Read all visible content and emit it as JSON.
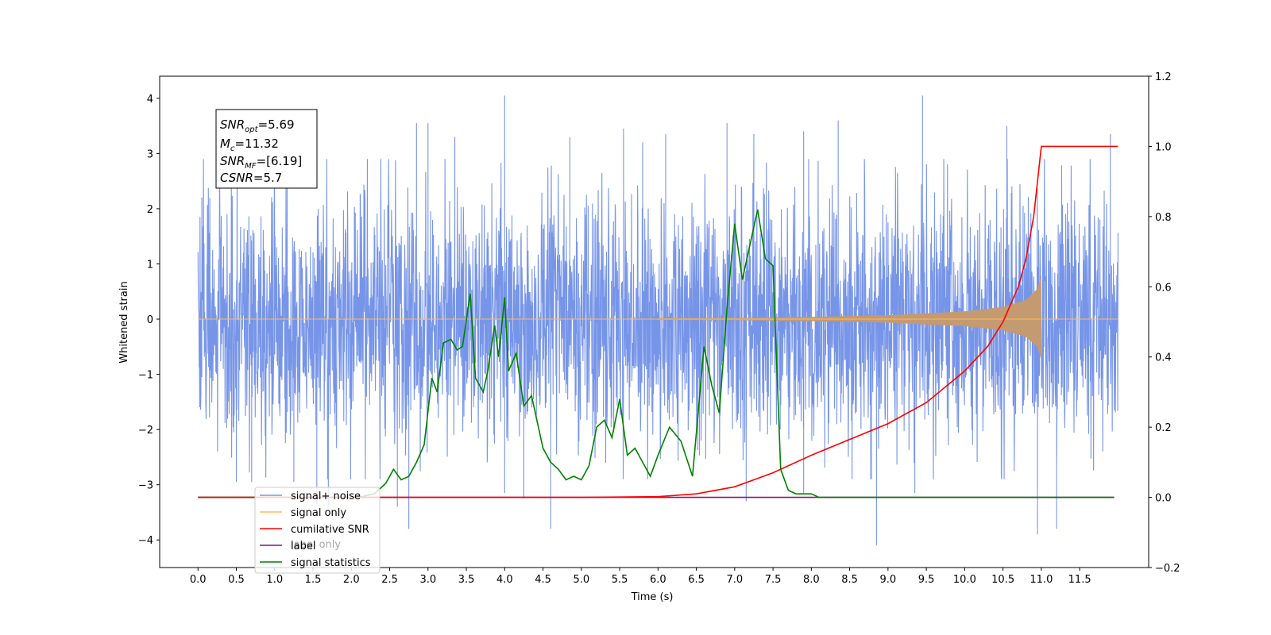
{
  "chart_data": {
    "type": "line",
    "title": "",
    "xlabel": "Time (s)",
    "ylabel": "Whitened strain",
    "y2label": "",
    "xlim": [
      -0.5,
      12.4
    ],
    "ylim": [
      -4.5,
      4.4
    ],
    "y2lim": [
      -0.2,
      1.2
    ],
    "x_ticks": [
      0.0,
      0.5,
      1.0,
      1.5,
      2.0,
      2.5,
      3.0,
      3.5,
      4.0,
      4.5,
      5.0,
      5.5,
      6.0,
      6.5,
      7.0,
      7.5,
      8.0,
      8.5,
      9.0,
      9.5,
      10.0,
      10.5,
      11.0,
      11.5
    ],
    "x_tick_labels": [
      "0.0",
      "0.5",
      "1.0",
      "1.5",
      "2.0",
      "2.5",
      "3.0",
      "3.5",
      "4.0",
      "4.5",
      "5.0",
      "5.5",
      "6.0",
      "6.5",
      "7.0",
      "7.5",
      "8.0",
      "8.5",
      "9.0",
      "9.5",
      "10.0",
      "10.5",
      "11.0",
      "11.5"
    ],
    "y_ticks": [
      -4,
      -3,
      -2,
      -1,
      0,
      1,
      2,
      3,
      4
    ],
    "y_tick_labels": [
      "−4",
      "−3",
      "−2",
      "−1",
      "0",
      "1",
      "2",
      "3",
      "4"
    ],
    "y2_ticks": [
      -0.2,
      0.0,
      0.2,
      0.4,
      0.6,
      0.8,
      1.0,
      1.2
    ],
    "y2_tick_labels": [
      "−0.2",
      "0.0",
      "0.2",
      "0.4",
      "0.6",
      "0.8",
      "1.0",
      "1.2"
    ],
    "grid": false,
    "legend_position": "lower-left",
    "annotation": {
      "lines": [
        {
          "main": "SNR",
          "sub": "opt",
          "value": "=5.69"
        },
        {
          "main": "M",
          "sub": "c",
          "value": "=11.32"
        },
        {
          "main": "SNR",
          "sub": "MF",
          "value": "=[6.19]"
        },
        {
          "main": "CSNR",
          "sub": "",
          "value": "=5.7"
        }
      ]
    },
    "series": [
      {
        "name": "signal+ noise",
        "axis": "left",
        "color": "#7795e8",
        "kind": "noise_band",
        "x_range": [
          0.0,
          12.0
        ],
        "typical_range": [
          -1.5,
          1.5
        ],
        "spikes": [
          {
            "x": 0.05,
            "y": 2.2
          },
          {
            "x": 0.05,
            "y": -1.05
          },
          {
            "x": 0.5,
            "y": -2.95
          },
          {
            "x": 0.7,
            "y": -2.95
          },
          {
            "x": 1.25,
            "y": -2.95
          },
          {
            "x": 1.55,
            "y": -3.35
          },
          {
            "x": 1.7,
            "y": -3.4
          },
          {
            "x": 2.6,
            "y": -3.4
          },
          {
            "x": 2.75,
            "y": -3.8
          },
          {
            "x": 2.85,
            "y": 3.55
          },
          {
            "x": 3.0,
            "y": 3.55
          },
          {
            "x": 3.35,
            "y": 3.3
          },
          {
            "x": 4.0,
            "y": 4.05
          },
          {
            "x": 4.0,
            "y": -3.15
          },
          {
            "x": 4.25,
            "y": -3.25
          },
          {
            "x": 4.6,
            "y": -3.8
          },
          {
            "x": 4.85,
            "y": 3.3
          },
          {
            "x": 5.55,
            "y": 3.45
          },
          {
            "x": 5.8,
            "y": 3.2
          },
          {
            "x": 6.1,
            "y": 3.35
          },
          {
            "x": 6.9,
            "y": 3.55
          },
          {
            "x": 7.15,
            "y": -3.3
          },
          {
            "x": 7.25,
            "y": 3.35
          },
          {
            "x": 7.9,
            "y": 3.4
          },
          {
            "x": 7.9,
            "y": -3.15
          },
          {
            "x": 8.35,
            "y": 3.6
          },
          {
            "x": 8.85,
            "y": -4.1
          },
          {
            "x": 9.35,
            "y": -3.15
          },
          {
            "x": 9.45,
            "y": 4.05
          },
          {
            "x": 10.55,
            "y": 3.5
          },
          {
            "x": 10.95,
            "y": -3.9
          },
          {
            "x": 11.2,
            "y": -3.8
          },
          {
            "x": 11.9,
            "y": 3.35
          }
        ]
      },
      {
        "name": "signal only",
        "axis": "left",
        "color": "#ffbb55",
        "fill_color": "#c49a70",
        "kind": "chirp",
        "x_range": [
          0.0,
          12.0
        ],
        "merger_time": 11.0,
        "envelope": [
          [
            0.0,
            0.0
          ],
          [
            7.0,
            0.02
          ],
          [
            8.0,
            0.04
          ],
          [
            9.0,
            0.07
          ],
          [
            10.0,
            0.14
          ],
          [
            10.5,
            0.22
          ],
          [
            10.8,
            0.35
          ],
          [
            10.95,
            0.55
          ],
          [
            11.0,
            0.8
          ]
        ]
      },
      {
        "name": "cumilative SNR",
        "axis": "right",
        "color": "#ff0000",
        "x": [
          0.0,
          5.0,
          6.0,
          6.5,
          7.0,
          7.5,
          8.0,
          8.5,
          9.0,
          9.5,
          10.0,
          10.3,
          10.5,
          10.7,
          10.8,
          10.9,
          10.95,
          11.0,
          11.5,
          12.0
        ],
        "y": [
          0.0,
          0.0,
          0.002,
          0.01,
          0.03,
          0.07,
          0.12,
          0.165,
          0.21,
          0.27,
          0.36,
          0.43,
          0.5,
          0.6,
          0.68,
          0.8,
          0.9,
          1.0,
          1.0,
          1.0
        ]
      },
      {
        "name": "label",
        "axis": "right",
        "color": "#7a1a78",
        "x": [
          0.0,
          11.95
        ],
        "y": [
          0.0,
          0.0
        ]
      },
      {
        "name": "signal statistics",
        "axis": "right",
        "color": "#008000",
        "x": [
          0.0,
          2.1,
          2.3,
          2.45,
          2.55,
          2.65,
          2.75,
          2.85,
          2.95,
          3.05,
          3.12,
          3.2,
          3.3,
          3.38,
          3.45,
          3.55,
          3.62,
          3.72,
          3.78,
          3.87,
          3.92,
          4.0,
          4.05,
          4.15,
          4.25,
          4.35,
          4.5,
          4.6,
          4.7,
          4.8,
          4.9,
          5.0,
          5.1,
          5.2,
          5.3,
          5.4,
          5.5,
          5.6,
          5.7,
          5.8,
          5.9,
          6.0,
          6.15,
          6.3,
          6.45,
          6.6,
          6.7,
          6.8,
          6.9,
          7.0,
          7.1,
          7.2,
          7.3,
          7.4,
          7.5,
          7.6,
          7.7,
          7.8,
          7.9,
          8.0,
          8.1,
          8.2,
          8.5,
          11.0,
          11.95
        ],
        "y": [
          0.0,
          0.0,
          0.01,
          0.04,
          0.08,
          0.05,
          0.06,
          0.1,
          0.15,
          0.34,
          0.3,
          0.44,
          0.45,
          0.42,
          0.43,
          0.58,
          0.34,
          0.3,
          0.36,
          0.49,
          0.4,
          0.57,
          0.36,
          0.41,
          0.26,
          0.29,
          0.14,
          0.1,
          0.08,
          0.05,
          0.06,
          0.05,
          0.09,
          0.2,
          0.22,
          0.17,
          0.28,
          0.12,
          0.14,
          0.1,
          0.06,
          0.12,
          0.2,
          0.16,
          0.06,
          0.43,
          0.32,
          0.24,
          0.54,
          0.78,
          0.62,
          0.72,
          0.82,
          0.68,
          0.66,
          0.08,
          0.02,
          0.01,
          0.01,
          0.01,
          0.0,
          0.0,
          0.0,
          0.0,
          0.0
        ]
      }
    ],
    "legend": [
      {
        "label": "signal+ noise",
        "color": "#7795e8"
      },
      {
        "label": "signal only",
        "color": "#ffbb55"
      },
      {
        "label": "cumilative SNR",
        "color": "#ff0000"
      },
      {
        "label": "label",
        "color": "#7a1a78"
      },
      {
        "label": "signal statistics",
        "color": "#008000"
      }
    ],
    "hidden_legend_text": "label only"
  }
}
